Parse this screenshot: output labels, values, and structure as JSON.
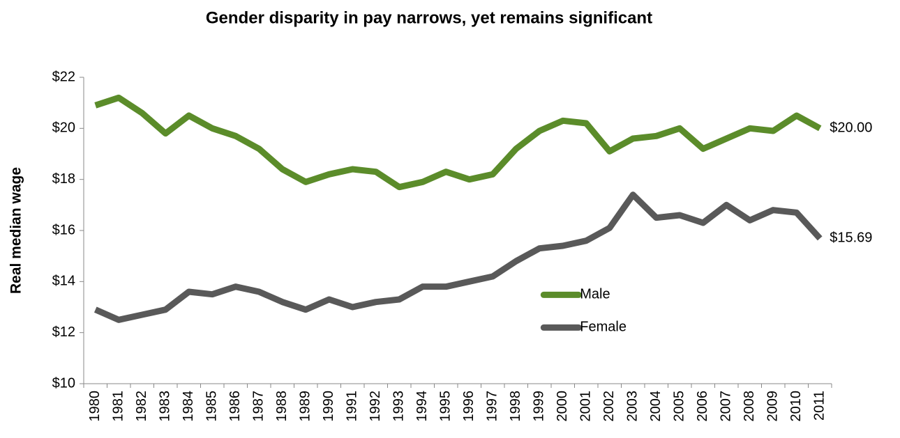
{
  "chart_data": {
    "type": "line",
    "title": "Gender disparity in pay narrows, yet remains significant",
    "y_label": "Real median wage",
    "categories": [
      "1980",
      "1981",
      "1982",
      "1983",
      "1984",
      "1985",
      "1986",
      "1987",
      "1988",
      "1989",
      "1990",
      "1991",
      "1992",
      "1993",
      "1994",
      "1995",
      "1996",
      "1997",
      "1998",
      "1999",
      "2000",
      "2001",
      "2002",
      "2003",
      "2004",
      "2005",
      "2006",
      "2007",
      "2008",
      "2009",
      "2010",
      "2011"
    ],
    "series": [
      {
        "name": "Male",
        "color": "#5b8c2a",
        "values": [
          20.9,
          21.2,
          20.6,
          19.8,
          20.5,
          20.0,
          19.7,
          19.2,
          18.4,
          17.9,
          18.2,
          18.4,
          18.3,
          17.7,
          17.9,
          18.3,
          18.0,
          18.2,
          19.2,
          19.9,
          20.3,
          20.2,
          19.1,
          19.6,
          19.7,
          20.0,
          19.2,
          19.6,
          20.0,
          19.9,
          20.5,
          20.0
        ],
        "value_labels": [
          null,
          null,
          null,
          null,
          null,
          null,
          null,
          null,
          null,
          null,
          null,
          null,
          null,
          null,
          null,
          null,
          null,
          null,
          null,
          null,
          null,
          null,
          null,
          null,
          null,
          null,
          null,
          null,
          null,
          null,
          null,
          "$20.00"
        ]
      },
      {
        "name": "Female",
        "color": "#595959",
        "values": [
          12.9,
          12.5,
          12.7,
          12.9,
          13.6,
          13.5,
          13.8,
          13.6,
          13.2,
          12.9,
          13.3,
          13.0,
          13.2,
          13.3,
          13.8,
          13.8,
          14.0,
          14.2,
          14.8,
          15.3,
          15.4,
          15.6,
          16.1,
          17.4,
          16.5,
          16.6,
          16.3,
          17.0,
          16.4,
          16.8,
          16.7,
          15.69
        ],
        "value_labels": [
          null,
          null,
          null,
          null,
          null,
          null,
          null,
          null,
          null,
          null,
          null,
          null,
          null,
          null,
          null,
          null,
          null,
          null,
          null,
          null,
          null,
          null,
          null,
          null,
          null,
          null,
          null,
          null,
          null,
          null,
          null,
          "$15.69"
        ]
      }
    ],
    "ylim": [
      10,
      22
    ],
    "yticks": [
      {
        "value": 10,
        "label": "$10"
      },
      {
        "value": 12,
        "label": "$12"
      },
      {
        "value": 14,
        "label": "$14"
      },
      {
        "value": 16,
        "label": "$16"
      },
      {
        "value": 18,
        "label": "$18"
      },
      {
        "value": 20,
        "label": "$20"
      },
      {
        "value": 22,
        "label": "$22"
      }
    ],
    "grid": false,
    "legend": "center"
  }
}
